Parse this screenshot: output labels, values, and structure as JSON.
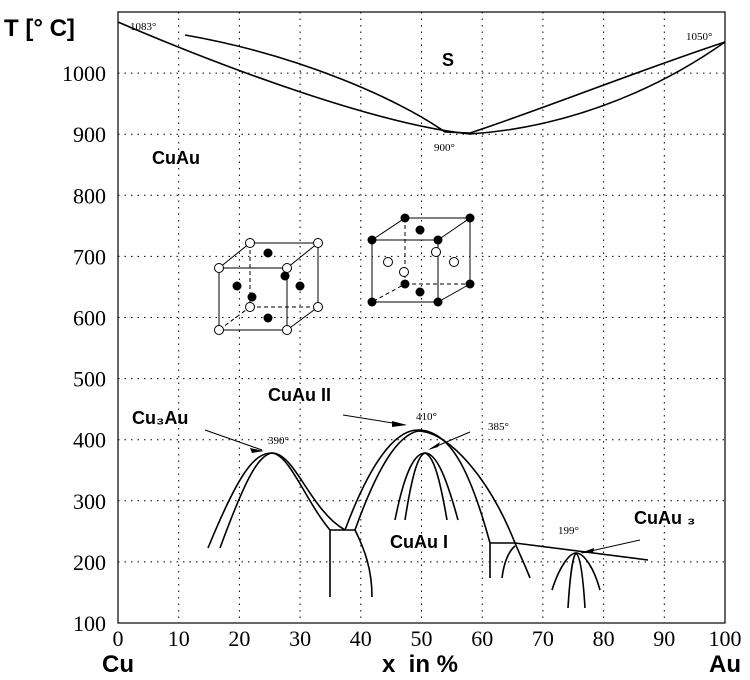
{
  "chart_data": {
    "type": "phase-diagram",
    "y_label": "T [° C]",
    "x_label": "x  in %",
    "x_left_label": "Cu",
    "x_right_label": "Au",
    "xlim": [
      0,
      100
    ],
    "ylim": [
      100,
      1100
    ],
    "xticks": [
      0,
      10,
      20,
      30,
      40,
      50,
      60,
      70,
      80,
      90,
      100
    ],
    "yticks": [
      100,
      200,
      300,
      400,
      500,
      600,
      700,
      800,
      900,
      1000
    ],
    "grid": true,
    "annotations": {
      "cu_melt": "1083°",
      "au_melt": "1050°",
      "min_melt": "900°",
      "solid": "S",
      "cuau": "CuAu",
      "cu3au": "Cu₃Au",
      "cuau2": "CuAu II",
      "t410": "410°",
      "t385": "385°",
      "t390": "390°",
      "cuau1": "CuAu I",
      "t199": "199°",
      "cuau3": "CuAu ₃"
    }
  }
}
